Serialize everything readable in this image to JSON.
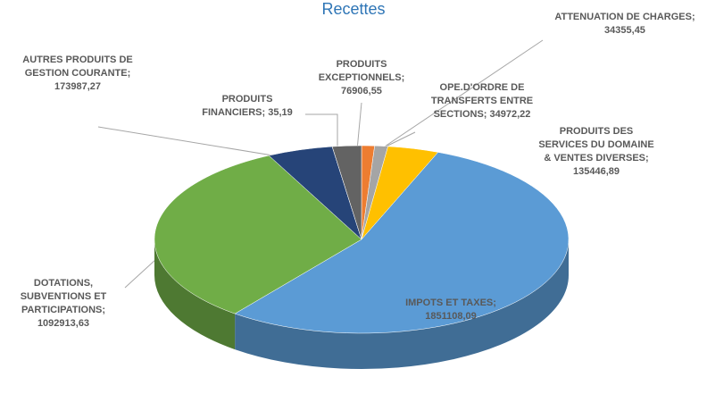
{
  "chart_data": {
    "type": "pie3d",
    "title": "Recettes",
    "categories": [
      "ATTENUATION DE CHARGES;",
      "OPE.D'ORDRE DE TRANSFERTS ENTRE SECTIONS;",
      "PRODUITS DES SERVICES DU DOMAINE & VENTES DIVERSES;",
      "IMPOTS ET TAXES;",
      "DOTATIONS, SUBVENTIONS ET PARTICIPATIONS;",
      "AUTRES PRODUITS DE GESTION COURANTE;",
      "PRODUITS FINANCIERS;",
      "PRODUITS EXCEPTIONNELS;"
    ],
    "values": [
      34355.45,
      34972.22,
      135446.89,
      1851108.09,
      1092913.63,
      173987.27,
      35.19,
      76906.55
    ],
    "value_labels": [
      "34355,45",
      "34972,22",
      "135446,89",
      "1851108,09",
      "1092913,63",
      "173987,27",
      "35,19",
      "76906,55"
    ],
    "colors": [
      "#ed7d31",
      "#a5a5a5",
      "#ffc000",
      "#5b9bd5",
      "#70ad47",
      "#264478",
      "#9e480e",
      "#636363"
    ]
  }
}
